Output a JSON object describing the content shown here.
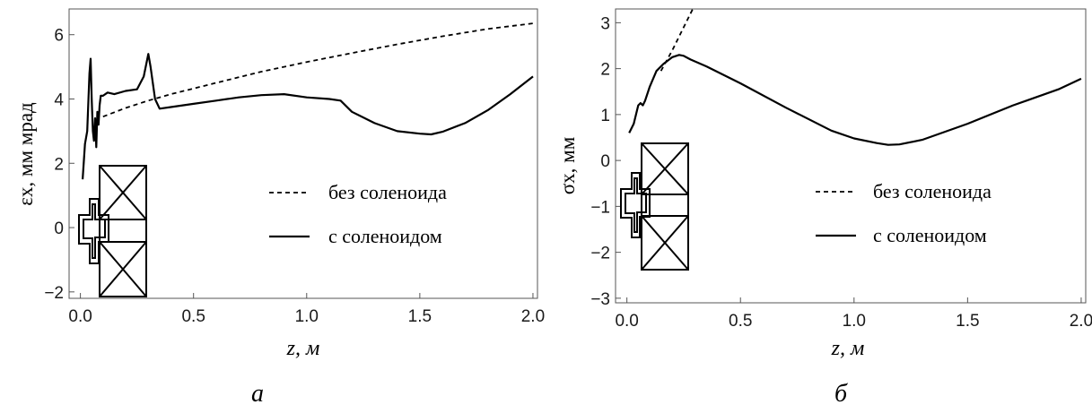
{
  "chart_data": [
    {
      "type": "line",
      "panel_label": "а",
      "xlabel": "z, м",
      "ylabel": "εx, мм мрад",
      "xlim": [
        -0.05,
        2.02
      ],
      "ylim": [
        -2.2,
        6.8
      ],
      "x_ticks": [
        "0.0",
        "0.5",
        "1.0",
        "1.5",
        "2.0"
      ],
      "y_ticks": [
        "−2",
        "0",
        "2",
        "4",
        "6"
      ],
      "x_tick_values": [
        0,
        0.5,
        1,
        1.5,
        2
      ],
      "y_tick_values": [
        -2,
        0,
        2,
        4,
        6
      ],
      "legend": [
        "без соленоида",
        "с соленоидом"
      ],
      "series": [
        {
          "name": "без соленоида",
          "style": "dashed",
          "x": [
            0.1,
            0.2,
            0.3,
            0.4,
            0.6,
            0.8,
            1.0,
            1.2,
            1.4,
            1.6,
            1.8,
            2.0
          ],
          "y": [
            3.45,
            3.72,
            3.95,
            4.15,
            4.5,
            4.85,
            5.15,
            5.43,
            5.7,
            5.95,
            6.18,
            6.35
          ]
        },
        {
          "name": "с соленоидом",
          "style": "solid",
          "x": [
            0.01,
            0.02,
            0.03,
            0.04,
            0.045,
            0.05,
            0.055,
            0.06,
            0.065,
            0.07,
            0.075,
            0.08,
            0.085,
            0.09,
            0.1,
            0.12,
            0.15,
            0.2,
            0.25,
            0.28,
            0.3,
            0.31,
            0.33,
            0.35,
            0.4,
            0.5,
            0.6,
            0.7,
            0.8,
            0.9,
            1.0,
            1.1,
            1.15,
            1.2,
            1.3,
            1.4,
            1.5,
            1.55,
            1.6,
            1.7,
            1.8,
            1.9,
            2.0
          ],
          "y": [
            1.5,
            2.6,
            3.0,
            4.8,
            5.25,
            4.0,
            3.0,
            2.7,
            3.4,
            2.5,
            3.6,
            3.2,
            3.8,
            4.1,
            4.1,
            4.2,
            4.15,
            4.25,
            4.3,
            4.7,
            5.4,
            5.0,
            4.0,
            3.7,
            3.75,
            3.85,
            3.95,
            4.05,
            4.12,
            4.15,
            4.05,
            4.0,
            3.95,
            3.6,
            3.25,
            3.0,
            2.92,
            2.9,
            2.98,
            3.25,
            3.65,
            4.15,
            4.7
          ]
        }
      ]
    },
    {
      "type": "line",
      "panel_label": "б",
      "xlabel": "z, м",
      "ylabel": "σx, мм",
      "xlim": [
        -0.05,
        2.02
      ],
      "ylim": [
        -3.1,
        3.3
      ],
      "x_ticks": [
        "0.0",
        "0.5",
        "1.0",
        "1.5",
        "2.0"
      ],
      "y_ticks": [
        "−3",
        "−2",
        "−1",
        "0",
        "1",
        "2",
        "3"
      ],
      "x_tick_values": [
        0,
        0.5,
        1,
        1.5,
        2
      ],
      "y_tick_values": [
        -3,
        -2,
        -1,
        0,
        1,
        2,
        3
      ],
      "legend": [
        "без соленоида",
        "с соленоидом"
      ],
      "series": [
        {
          "name": "без соленоида",
          "style": "dashed",
          "x": [
            0.15,
            0.2,
            0.25,
            0.29
          ],
          "y": [
            1.95,
            2.4,
            2.9,
            3.3
          ]
        },
        {
          "name": "с соленоидом",
          "style": "solid",
          "x": [
            0.01,
            0.03,
            0.05,
            0.06,
            0.07,
            0.08,
            0.1,
            0.13,
            0.16,
            0.2,
            0.23,
            0.25,
            0.28,
            0.35,
            0.5,
            0.7,
            0.9,
            1.0,
            1.1,
            1.15,
            1.2,
            1.3,
            1.5,
            1.7,
            1.9,
            2.0
          ],
          "y": [
            0.6,
            0.8,
            1.2,
            1.25,
            1.2,
            1.3,
            1.6,
            1.95,
            2.1,
            2.25,
            2.3,
            2.28,
            2.2,
            2.05,
            1.68,
            1.15,
            0.65,
            0.48,
            0.38,
            0.34,
            0.35,
            0.45,
            0.8,
            1.2,
            1.55,
            1.78
          ]
        }
      ]
    }
  ]
}
